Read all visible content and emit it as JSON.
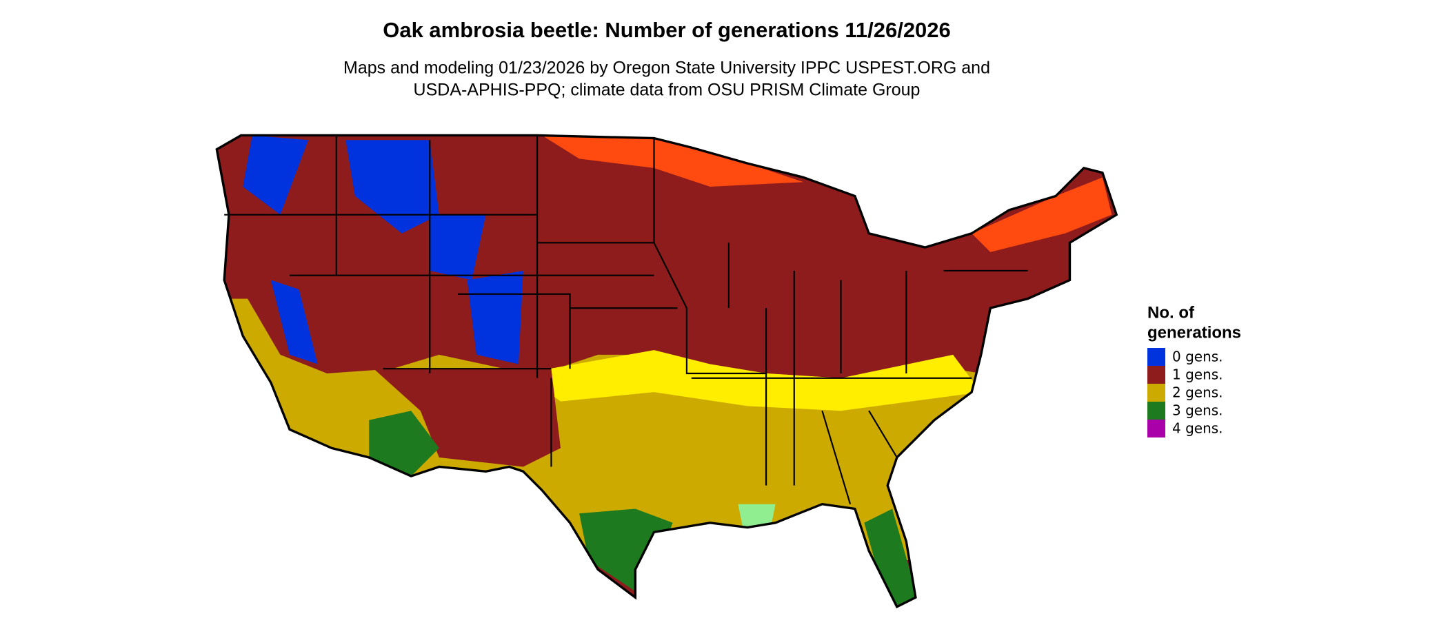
{
  "header": {
    "title": "Oak ambrosia beetle: Number of generations 11/26/2026",
    "subtitle": [
      "Maps and modeling 01/23/2026 by Oregon State University IPPC USPEST.ORG and",
      "USDA-APHIS-PPQ; climate data from OSU PRISM Climate Group"
    ]
  },
  "legend": {
    "title": [
      "No. of",
      "generations"
    ],
    "items": [
      {
        "label": "0 gens.",
        "color": "#0033dd"
      },
      {
        "label": "1 gens.",
        "color": "#8e1c1c"
      },
      {
        "label": "2 gens.",
        "color": "#ccaa00"
      },
      {
        "label": "3 gens.",
        "color": "#1e7a1e"
      },
      {
        "label": "4 gens.",
        "color": "#aa00aa"
      }
    ]
  }
}
